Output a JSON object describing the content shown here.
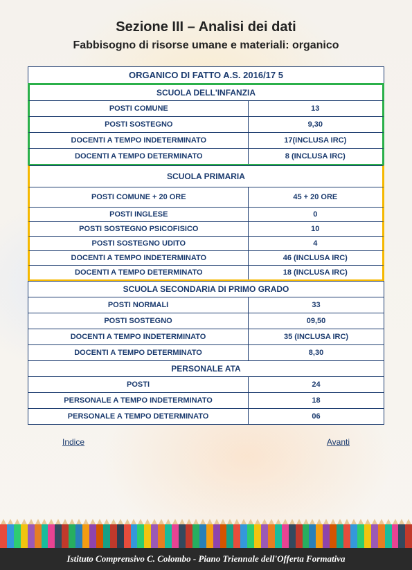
{
  "title": "Sezione III – Analisi dei dati",
  "subtitle": "Fabbisogno di risorse umane e materiali: organico",
  "main_header": "ORGANICO DI FATTO A.S. 2016/17 5",
  "colors": {
    "border_blue": "#1a3a6e",
    "text_blue": "#1a3a6e",
    "accent_green": "#2bb04a",
    "accent_yellow": "#f5b800",
    "page_bg": "#f8f5f0",
    "footer_bg": "#2a2a2a"
  },
  "sections": [
    {
      "accent": "green",
      "subheader": "SCUOLA DELL'INFANZIA",
      "rows": [
        {
          "label": "POSTI COMUNE",
          "value": "13"
        },
        {
          "label": "POSTI SOSTEGNO",
          "value": "9,30"
        },
        {
          "label": "DOCENTI A TEMPO INDETERMINATO",
          "value": "17(INCLUSA IRC)"
        },
        {
          "label": "DOCENTI A TEMPO DETERMINATO",
          "value": "8 (INCLUSA IRC)"
        }
      ]
    },
    {
      "accent": "yellow",
      "subheader": "SCUOLA PRIMARIA",
      "rows": [
        {
          "label": "POSTI COMUNE + 20 ORE",
          "value": "45 + 20 ORE"
        },
        {
          "label": "POSTI INGLESE",
          "value": "0",
          "tight": true
        },
        {
          "label": "POSTI SOSTEGNO PSICOFISICO",
          "value": "10",
          "tight": true
        },
        {
          "label": "POSTI SOSTEGNO UDITO",
          "value": "4",
          "tight": true
        },
        {
          "label": "DOCENTI A TEMPO INDETERMINATO",
          "value": "46 (INCLUSA IRC)",
          "tight": true
        },
        {
          "label": "DOCENTI A TEMPO DETERMINATO",
          "value": "18 (INCLUSA IRC)",
          "tight": true
        }
      ]
    },
    {
      "accent": "none",
      "subheader": "SCUOLA SECONDARIA DI PRIMO GRADO",
      "rows": [
        {
          "label": "POSTI NORMALI",
          "value": "33"
        },
        {
          "label": "POSTI SOSTEGNO",
          "value": "09,50"
        },
        {
          "label": "DOCENTI A TEMPO INDETERMINATO",
          "value": "35 (INCLUSA IRC)"
        },
        {
          "label": "DOCENTI A TEMPO DETERMINATO",
          "value": "8,30"
        }
      ]
    },
    {
      "accent": "none",
      "subheader": "PERSONALE ATA",
      "rows": [
        {
          "label": "POSTI",
          "value": "24"
        },
        {
          "label": "PERSONALE A TEMPO INDETERMINATO",
          "value": "18"
        },
        {
          "label": "PERSONALE A TEMPO DETERMINATO",
          "value": "06"
        }
      ]
    }
  ],
  "nav": {
    "prev": "Indice",
    "next": "Avanti"
  },
  "footer": "Istituto Comprensivo C. Colombo - Piano Triennale dell'Offerta Formativa",
  "pencil_colors": [
    "#e74c3c",
    "#3498db",
    "#2ecc71",
    "#f1c40f",
    "#9b59b6",
    "#e67e22",
    "#1abc9c",
    "#e84393",
    "#34495e",
    "#c0392b",
    "#27ae60",
    "#2980b9",
    "#f39c12",
    "#8e44ad",
    "#d35400",
    "#16a085",
    "#c0392b",
    "#2c3e50",
    "#e74c3c",
    "#3498db",
    "#2ecc71",
    "#f1c40f",
    "#9b59b6",
    "#e67e22",
    "#1abc9c",
    "#e84393",
    "#34495e",
    "#c0392b",
    "#27ae60",
    "#2980b9",
    "#f39c12",
    "#8e44ad",
    "#d35400",
    "#16a085",
    "#e74c3c",
    "#3498db",
    "#2ecc71",
    "#f1c40f",
    "#9b59b6",
    "#e67e22",
    "#1abc9c",
    "#e84393",
    "#34495e",
    "#c0392b",
    "#27ae60",
    "#2980b9",
    "#f39c12",
    "#8e44ad",
    "#d35400",
    "#16a085",
    "#e74c3c",
    "#3498db",
    "#2ecc71",
    "#f1c40f",
    "#9b59b6",
    "#e67e22",
    "#1abc9c",
    "#e84393",
    "#34495e",
    "#c0392b"
  ]
}
